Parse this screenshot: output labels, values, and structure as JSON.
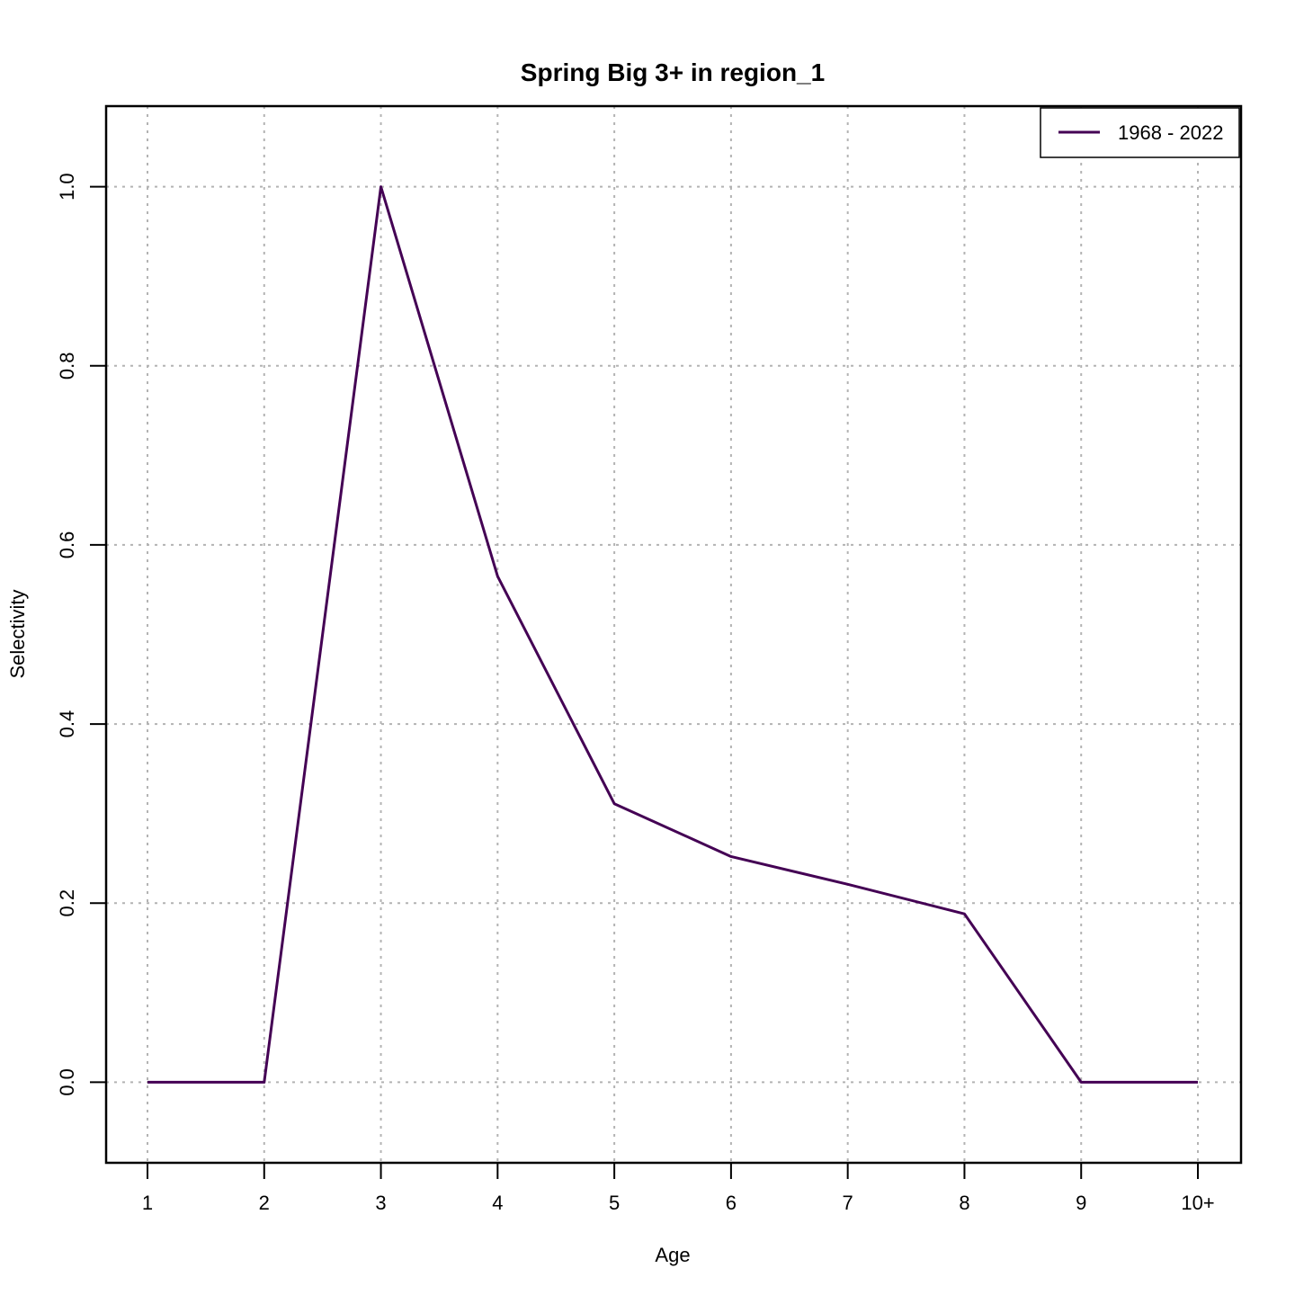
{
  "chart_data": {
    "type": "line",
    "title": "Spring Big 3+ in region_1",
    "xlabel": "Age",
    "ylabel": "Selectivity",
    "categories": [
      "1",
      "2",
      "3",
      "4",
      "5",
      "6",
      "7",
      "8",
      "9",
      "10+"
    ],
    "yticks": [
      "0.0",
      "0.2",
      "0.4",
      "0.6",
      "0.8",
      "1.0"
    ],
    "ylim": [
      -0.09,
      1.09
    ],
    "grid": true,
    "legend_position": "top-right",
    "series": [
      {
        "name": "1968 - 2022",
        "color": "#440154",
        "values": [
          0.0,
          0.0,
          1.0,
          0.565,
          0.311,
          0.252,
          0.221,
          0.188,
          0.0,
          0.0
        ]
      }
    ]
  }
}
